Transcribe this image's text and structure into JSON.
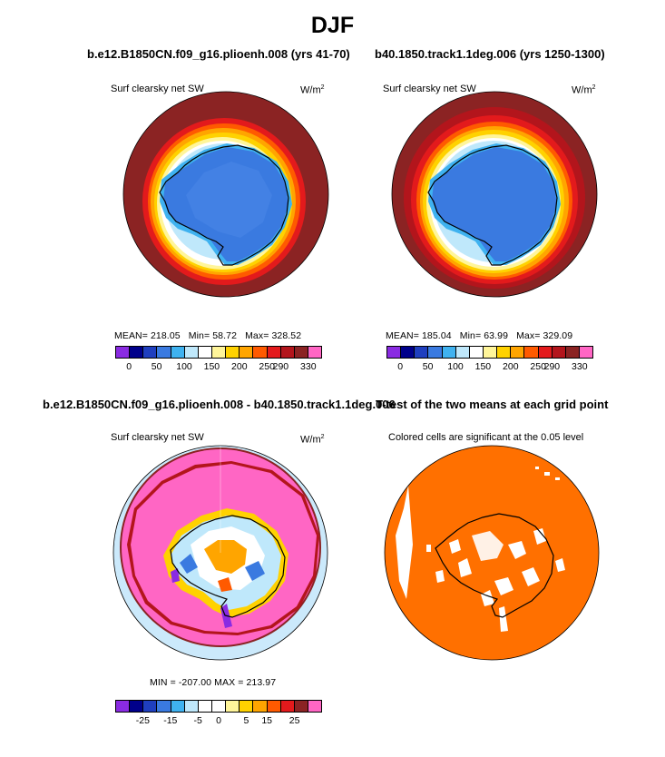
{
  "main_title": "DJF",
  "panels": [
    {
      "title": "b.e12.B1850CN.f09_g16.plioenh.008 (yrs 41-70)",
      "left_label": "Surf clearsky net SW",
      "right_label": "W/m",
      "unit_sup": "2",
      "stats": {
        "mean": "MEAN=  218.05",
        "min": "Min=   58.72",
        "max": "Max=  328.52"
      },
      "colorbar_ticks": [
        "0",
        "50",
        "100",
        "150",
        "200",
        "250",
        "290",
        "330"
      ]
    },
    {
      "title": "b40.1850.track1.1deg.006 (yrs 1250-1300)",
      "left_label": "Surf clearsky net SW",
      "right_label": "W/m",
      "unit_sup": "2",
      "stats": {
        "mean": "MEAN=  185.04",
        "min": "Min=   63.99",
        "max": "Max=  329.09"
      },
      "colorbar_ticks": [
        "0",
        "50",
        "100",
        "150",
        "200",
        "250",
        "290",
        "330"
      ]
    },
    {
      "title": "b.e12.B1850CN.f09_g16.plioenh.008 - b40.1850.track1.1deg.006",
      "left_label": "Surf clearsky net SW",
      "right_label": "W/m",
      "unit_sup": "2",
      "stats_line": "MIN = -207.00  MAX = 213.97",
      "colorbar_ticks": [
        "-25",
        "-15",
        "-5",
        "0",
        "5",
        "15",
        "25"
      ]
    },
    {
      "title": "T-test of the two means at each grid point",
      "left_label": "Colored cells are significant at the 0.05 level"
    }
  ],
  "colors": {
    "abs_scale": [
      "#8a2be2",
      "#00008b",
      "#1f3fbf",
      "#3a7ae0",
      "#3fb2f0",
      "#bfe8fb",
      "#ffffff",
      "#fff59a",
      "#ffd200",
      "#ffa500",
      "#ff5a00",
      "#e31a1c",
      "#b3151c",
      "#8b2323",
      "#ff66c4"
    ],
    "diff_scale": [
      "#8a2be2",
      "#00008b",
      "#1f3fbf",
      "#3a7ae0",
      "#3fb2f0",
      "#bfe8fb",
      "#ffffff",
      "#ffffff",
      "#fff59a",
      "#ffd200",
      "#ffa500",
      "#ff5a00",
      "#e31a1c",
      "#8b2323",
      "#ff66c4"
    ],
    "significance": "#ff7000"
  }
}
